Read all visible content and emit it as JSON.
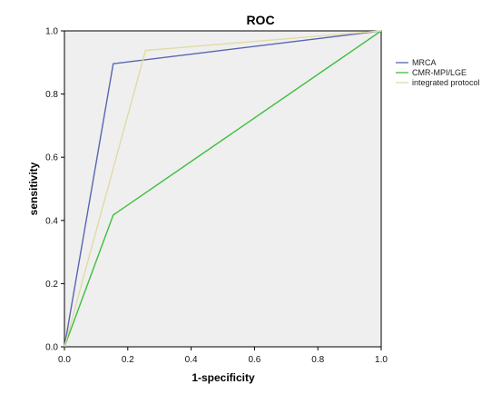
{
  "chart_data": {
    "type": "line",
    "title": "ROC",
    "xlabel": "1-specificity",
    "ylabel": "sensitivity",
    "xlim": [
      0.0,
      1.0
    ],
    "ylim": [
      0.0,
      1.0
    ],
    "xticks": [
      "0.0",
      "0.2",
      "0.4",
      "0.6",
      "0.8",
      "1.0"
    ],
    "yticks": [
      "0.0",
      "0.2",
      "0.4",
      "0.6",
      "0.8",
      "1.0"
    ],
    "grid": false,
    "legend_position": "top-right",
    "series": [
      {
        "name": "MRCA",
        "color": "#5865b0",
        "x": [
          0.0,
          0.154,
          1.0
        ],
        "y": [
          0.0,
          0.896,
          1.0
        ]
      },
      {
        "name": "CMR-MPI/LGE",
        "color": "#3cbf3c",
        "x": [
          0.0,
          0.154,
          1.0
        ],
        "y": [
          0.0,
          0.417,
          1.0
        ]
      },
      {
        "name": "integrated protocol",
        "color": "#e0dba6",
        "x": [
          0.0,
          0.256,
          1.0
        ],
        "y": [
          0.0,
          0.938,
          1.0
        ]
      }
    ]
  },
  "colors": {
    "plot_background": "#efefef",
    "axis": "#000000"
  }
}
